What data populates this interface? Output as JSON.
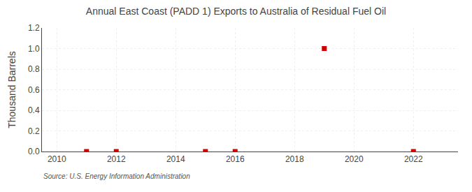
{
  "chart_data": {
    "type": "scatter",
    "title": "Annual East Coast (PADD 1) Exports to Australia of Residual Fuel Oil",
    "ylabel": "Thousand Barrels",
    "annotations": [
      "Source: U.S. Energy Information Administration"
    ],
    "x": [
      2011,
      2012,
      2015,
      2016,
      2019,
      2022
    ],
    "values": [
      0.0,
      0.0,
      0.0,
      0.0,
      1.0,
      0.0
    ],
    "color": "#cc0000",
    "marker": "square",
    "xlim": [
      2009.5,
      2023.5
    ],
    "ylim": [
      0.0,
      1.2
    ],
    "xticks": [
      2010,
      2012,
      2014,
      2016,
      2018,
      2020,
      2022
    ],
    "yticks": [
      {
        "value": 0.0,
        "label": "0.0"
      },
      {
        "value": 0.2,
        "label": "0.2"
      },
      {
        "value": 0.4,
        "label": "0.4"
      },
      {
        "value": 0.6,
        "label": "0.6"
      },
      {
        "value": 0.8,
        "label": "0.8"
      },
      {
        "value": 1.0,
        "label": "1.0"
      },
      {
        "value": 1.2,
        "label": "1.2"
      }
    ],
    "grid": true
  }
}
